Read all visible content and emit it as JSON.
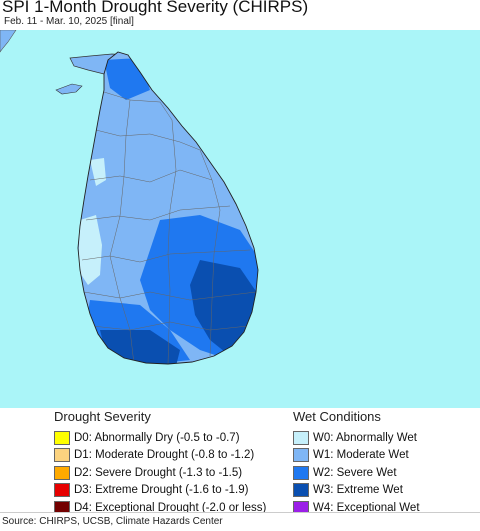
{
  "title": "SPI 1-Month Drought Severity (CHIRPS)",
  "subtitle": "Feb. 11 - Mar. 10, 2025 [final]",
  "legend": {
    "drought": {
      "heading": "Drought Severity",
      "items": [
        {
          "label": "D0: Abnormally Dry (-0.5 to -0.7)",
          "color": "#ffff00"
        },
        {
          "label": "D1: Moderate Drought (-0.8 to -1.2)",
          "color": "#fcd37f"
        },
        {
          "label": "D2: Severe Drought (-1.3 to -1.5)",
          "color": "#ffaa00"
        },
        {
          "label": "D3: Extreme Drought (-1.6 to -1.9)",
          "color": "#e60000"
        },
        {
          "label": "D4: Exceptional Drought (-2.0 or less)",
          "color": "#730000"
        }
      ]
    },
    "wet": {
      "heading": "Wet Conditions",
      "items": [
        {
          "label": "W0: Abnormally Wet",
          "color": "#c6f0fb"
        },
        {
          "label": "W1: Moderate Wet",
          "color": "#7fb6f5"
        },
        {
          "label": "W2: Severe Wet",
          "color": "#1f78f0"
        },
        {
          "label": "W3: Extreme Wet",
          "color": "#0a4fb0"
        },
        {
          "label": "W4: Exceptional Wet",
          "color": "#9b1fe8"
        }
      ]
    }
  },
  "map": {
    "ocean_color": "#aaf5f8",
    "dominant_category": "W1: Moderate Wet"
  },
  "source": "Source: CHIRPS, UCSB, Climate Hazards Center"
}
